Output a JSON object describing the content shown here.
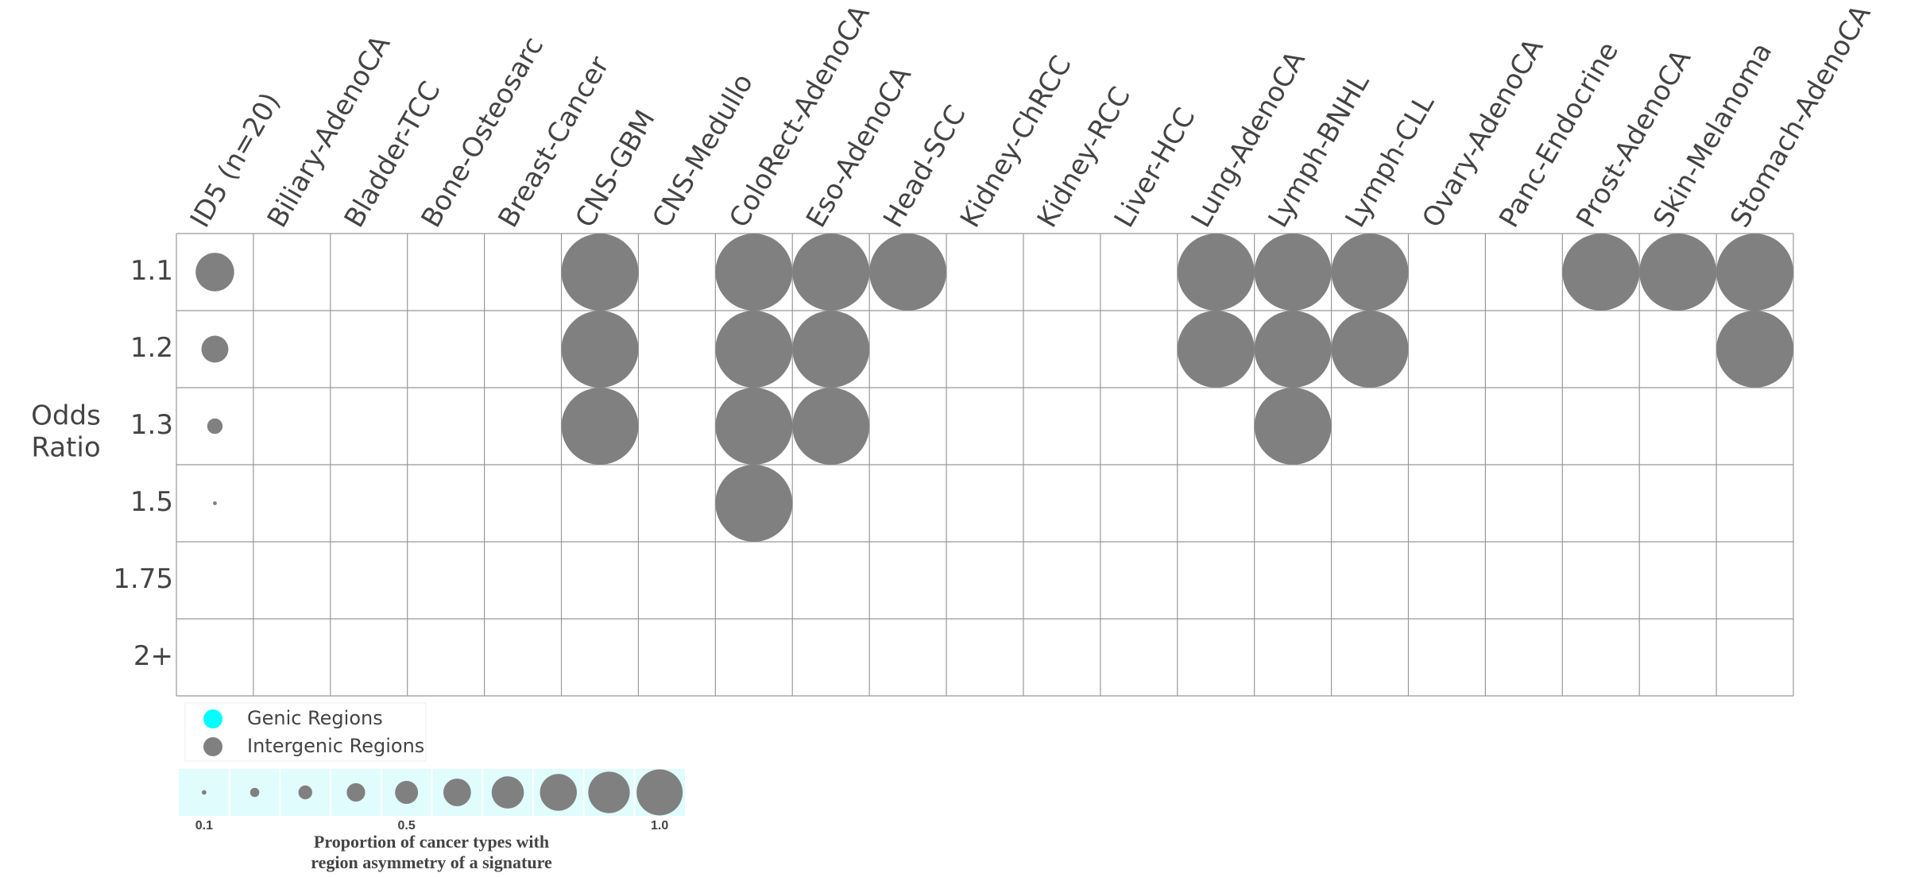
{
  "chart_data": {
    "type": "bubble_grid",
    "columns": [
      "ID5 (n=20)",
      "Biliary-AdenoCA",
      "Bladder-TCC",
      "Bone-Osteosarc",
      "Breast-Cancer",
      "CNS-GBM",
      "CNS-Medullo",
      "ColoRect-AdenoCA",
      "Eso-AdenoCA",
      "Head-SCC",
      "Kidney-ChRCC",
      "Kidney-RCC",
      "Liver-HCC",
      "Lung-AdenoCA",
      "Lymph-BNHL",
      "Lymph-CLL",
      "Ovary-AdenoCA",
      "Panc-Endocrine",
      "Prost-AdenoCA",
      "Skin-Melanoma",
      "Stomach-AdenoCA"
    ],
    "rows": [
      "1.1",
      "1.2",
      "1.3",
      "1.5",
      "1.75",
      "2+"
    ],
    "y_label": [
      "Odds",
      "Ratio"
    ],
    "series": [
      {
        "name": "Genic Regions",
        "color": "#00ffff"
      },
      {
        "name": "Intergenic Regions",
        "color": "#808080",
        "values": [
          [
            0.5,
            null,
            null,
            null,
            null,
            1,
            null,
            1,
            1,
            1,
            null,
            null,
            null,
            1,
            1,
            1,
            null,
            null,
            1,
            1,
            1
          ],
          [
            0.35,
            null,
            null,
            null,
            null,
            1,
            null,
            1,
            1,
            null,
            null,
            null,
            null,
            1,
            1,
            1,
            null,
            null,
            null,
            null,
            1
          ],
          [
            0.2,
            null,
            null,
            null,
            null,
            1,
            null,
            1,
            1,
            null,
            null,
            null,
            null,
            null,
            1,
            null,
            null,
            null,
            null,
            null,
            null
          ],
          [
            0.05,
            null,
            null,
            null,
            null,
            null,
            null,
            1,
            null,
            null,
            null,
            null,
            null,
            null,
            null,
            null,
            null,
            null,
            null,
            null,
            null
          ],
          [
            null,
            null,
            null,
            null,
            null,
            null,
            null,
            null,
            null,
            null,
            null,
            null,
            null,
            null,
            null,
            null,
            null,
            null,
            null,
            null,
            null
          ],
          [
            null,
            null,
            null,
            null,
            null,
            null,
            null,
            null,
            null,
            null,
            null,
            null,
            null,
            null,
            null,
            null,
            null,
            null,
            null,
            null,
            null
          ]
        ]
      }
    ],
    "size_legend": {
      "values": [
        0.1,
        0.2,
        0.3,
        0.4,
        0.5,
        0.6,
        0.7,
        0.8,
        0.9,
        1.0
      ],
      "ticks": [
        0.1,
        0.5,
        {
          "value": 1,
          "label": "1.0"
        }
      ],
      "title": [
        "Proportion of cancer types with",
        "region asymmetry of a signature"
      ]
    }
  }
}
